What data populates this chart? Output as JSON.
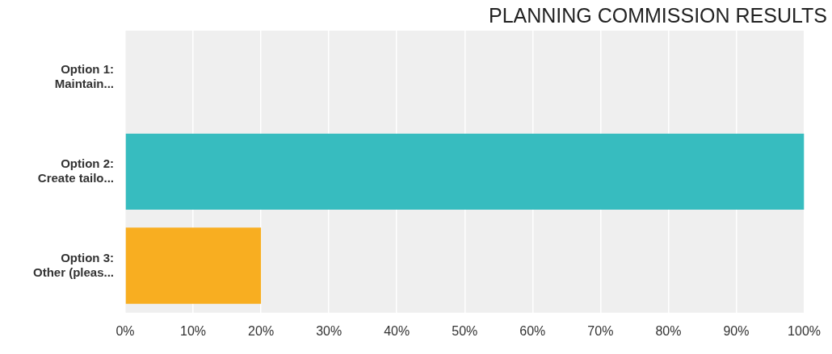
{
  "chart_data": {
    "type": "bar",
    "orientation": "horizontal",
    "title": "PLANNING COMMISSION RESULTS",
    "categories": [
      "Option 1:\nMaintain...",
      "Option 2:\nCreate tailo...",
      "Option 3:\nOther (pleas..."
    ],
    "values": [
      0,
      100,
      20
    ],
    "colors": [
      "#37bcbf",
      "#37bcbf",
      "#f8ae21"
    ],
    "xlim": [
      0,
      100
    ],
    "xticks": [
      {
        "value": 0,
        "label": "0%"
      },
      {
        "value": 10,
        "label": "10%"
      },
      {
        "value": 20,
        "label": "20%"
      },
      {
        "value": 30,
        "label": "30%"
      },
      {
        "value": 40,
        "label": "40%"
      },
      {
        "value": 50,
        "label": "50%"
      },
      {
        "value": 60,
        "label": "60%"
      },
      {
        "value": 70,
        "label": "70%"
      },
      {
        "value": 80,
        "label": "80%"
      },
      {
        "value": 90,
        "label": "90%"
      },
      {
        "value": 100,
        "label": "100%"
      }
    ],
    "grid": "x",
    "legend": false
  }
}
